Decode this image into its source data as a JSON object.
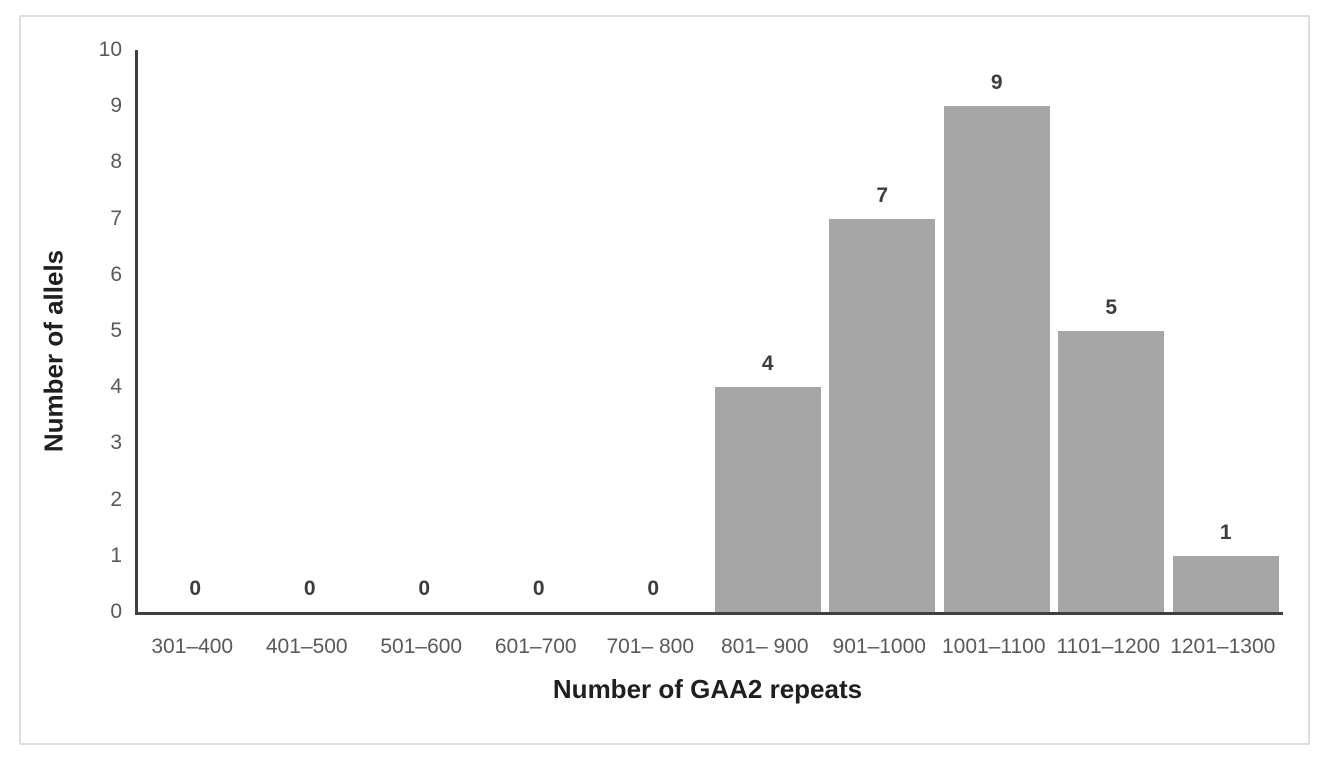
{
  "chart_data": {
    "type": "bar",
    "title": "",
    "categories": [
      "301–400",
      "401–500",
      "501–600",
      "601–700",
      "701– 800",
      "801– 900",
      "901–1000",
      "1001–1100",
      "1101–1200",
      "1201–1300"
    ],
    "values": [
      0,
      0,
      0,
      0,
      0,
      4,
      7,
      9,
      5,
      1
    ],
    "data_labels": [
      "0",
      "0",
      "0",
      "0",
      "0",
      "4",
      "7",
      "9",
      "5",
      "1"
    ],
    "xlabel": "Number of GAA2 repeats",
    "ylabel": "Number of allels",
    "ylim": [
      0,
      10
    ],
    "yticks": [
      0,
      1,
      2,
      3,
      4,
      5,
      6,
      7,
      8,
      9,
      10
    ],
    "grid": false,
    "legend": false,
    "colors": {
      "bar_fill": "#a6a6a6",
      "axis_line": "#3f3f3f",
      "tick_label": "#595959",
      "data_label": "#3d3d3d",
      "frame_border": "#dedede"
    }
  }
}
